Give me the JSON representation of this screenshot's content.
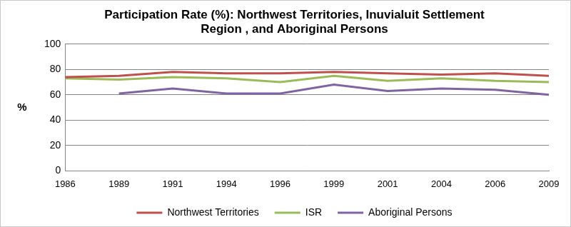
{
  "chart_data": {
    "type": "line",
    "title": [
      "Participation Rate (%): Northwest Territories, Inuvialuit Settlement",
      "Region , and Aboriginal Persons"
    ],
    "y_label": "%",
    "categories": [
      "1986",
      "1989",
      "1991",
      "1994",
      "1996",
      "1999",
      "2001",
      "2004",
      "2006",
      "2009"
    ],
    "series": [
      {
        "name": "Northwest Territories",
        "color": "#c0504d",
        "values": [
          74,
          75,
          78,
          77,
          77,
          78,
          77,
          76,
          77,
          75
        ]
      },
      {
        "name": "ISR",
        "color": "#9bbb59",
        "values": [
          73,
          72,
          74,
          73,
          70,
          75,
          71,
          73,
          71,
          70
        ]
      },
      {
        "name": "Aboriginal Persons",
        "color": "#8064a2",
        "values": [
          null,
          61,
          65,
          61,
          61,
          68,
          63,
          65,
          64,
          60
        ]
      }
    ],
    "ylim": [
      0,
      100
    ],
    "yticks": [
      0,
      20,
      40,
      60,
      80,
      100
    ],
    "grid": true,
    "legend": "bottom",
    "marker": "none"
  }
}
